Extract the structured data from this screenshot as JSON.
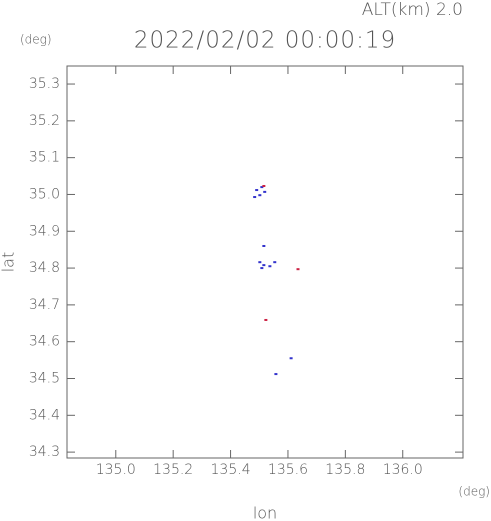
{
  "chart_data": {
    "type": "scatter",
    "title": "2022/02/02 00:00:19",
    "annotation": "ALT(km) 2.0",
    "xlabel": "lon",
    "ylabel": "lat",
    "xunit": "(deg)",
    "yunit": "(deg)",
    "xlim": [
      134.83,
      136.21
    ],
    "ylim": [
      34.284,
      35.349
    ],
    "xticks": [
      {
        "value": 135,
        "label": "135.0"
      },
      135.2,
      135.4,
      135.6,
      135.8,
      {
        "value": 136,
        "label": "136.0"
      }
    ],
    "yticks": [
      35.3,
      35.2,
      35.1,
      {
        "value": 35,
        "label": "35.0"
      },
      34.9,
      34.8,
      34.7,
      34.6,
      34.5,
      34.4,
      34.3
    ],
    "series": [
      {
        "color": "#3333cc",
        "x": [
          135.491,
          135.509,
          135.519,
          135.502,
          135.484,
          135.516,
          135.502,
          135.509,
          135.516,
          135.554,
          135.537,
          135.611,
          135.558
        ],
        "values": [
          35.012,
          35.02,
          35.007,
          34.998,
          34.993,
          34.86,
          34.816,
          34.8,
          34.808,
          34.816,
          34.805,
          34.555,
          34.512
        ]
      },
      {
        "color": "#cc2244",
        "x": [
          135.516,
          135.635,
          135.523
        ],
        "values": [
          35.023,
          34.797,
          34.659
        ]
      }
    ]
  }
}
